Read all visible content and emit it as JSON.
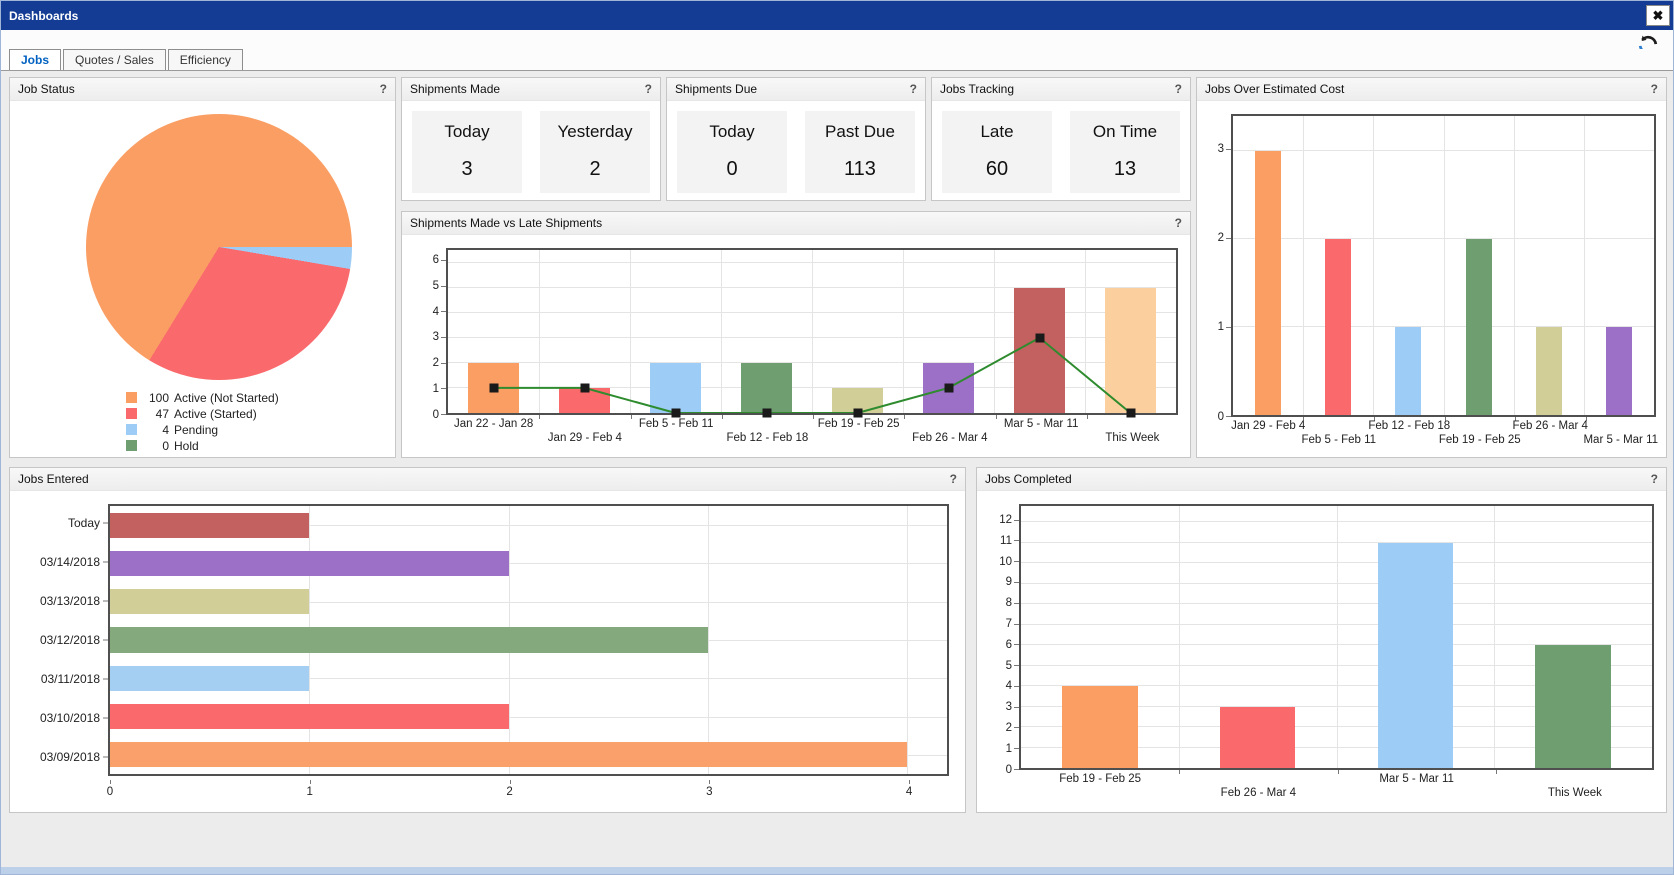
{
  "window": {
    "title": "Dashboards",
    "close_glyph": "✖"
  },
  "tabs": [
    {
      "label": "Jobs",
      "active": true
    },
    {
      "label": "Quotes / Sales",
      "active": false
    },
    {
      "label": "Efficiency",
      "active": false
    }
  ],
  "help_glyph": "?",
  "stat_panels": [
    {
      "title": "Shipments Made",
      "stats": [
        {
          "label": "Today",
          "value": "3"
        },
        {
          "label": "Yesterday",
          "value": "2"
        }
      ]
    },
    {
      "title": "Shipments Due",
      "stats": [
        {
          "label": "Today",
          "value": "0"
        },
        {
          "label": "Past Due",
          "value": "113"
        }
      ]
    },
    {
      "title": "Jobs Tracking",
      "stats": [
        {
          "label": "Late",
          "value": "60"
        },
        {
          "label": "On Time",
          "value": "13"
        }
      ]
    }
  ],
  "colors": {
    "titlebar_blue": "#143C94",
    "active_tab_text": "#0061C1",
    "orange": "#FA9E64",
    "red": "#FA696C",
    "blue": "#9DCDF6",
    "green": "#6F9F71",
    "tan": "#D2CE97",
    "purple": "#9C70C6",
    "maroon": "#C2615F",
    "peach": "#FCD09E",
    "line_green": "#2E8B2E"
  },
  "chart_data": [
    {
      "type": "pie",
      "title": "Job Status",
      "labels": [
        "Active (Not Started)",
        "Active (Started)",
        "Pending",
        "Hold"
      ],
      "values": [
        100,
        47,
        4,
        0
      ],
      "colors": [
        "#FA9E64",
        "#FA696C",
        "#9DCDF6",
        "#6F9F71"
      ],
      "legend": [
        {
          "value": "100",
          "label": "Active (Not Started)"
        },
        {
          "value": "47",
          "label": "Active (Started)"
        },
        {
          "value": "4",
          "label": "Pending"
        },
        {
          "value": "0",
          "label": "Hold"
        }
      ],
      "legend_position": "bottom-left"
    },
    {
      "type": "bar",
      "title": "Jobs Over Estimated Cost",
      "categories": [
        "Jan 29 - Feb 4",
        "Feb 5 - Feb 11",
        "Feb 12 - Feb 18",
        "Feb 19 - Feb 25",
        "Feb 26 - Mar 4",
        "Mar 5 - Mar 11"
      ],
      "values": [
        3,
        2,
        1,
        2,
        1,
        1
      ],
      "colors": [
        "#FA9E64",
        "#FA696C",
        "#9DCDF6",
        "#6F9F71",
        "#D2CE97",
        "#9C70C6"
      ],
      "ylim": [
        0,
        3.4
      ],
      "yticks": [
        0,
        1,
        2,
        3
      ],
      "grid": true
    },
    {
      "type": "bar+line",
      "title": "Shipments Made vs Late Shipments",
      "categories": [
        "Jan 22 - Jan 28",
        "Jan 29 - Feb 4",
        "Feb 5 - Feb 11",
        "Feb 12 - Feb 18",
        "Feb 19 - Feb 25",
        "Feb 26 - Mar 4",
        "Mar 5 - Mar 11",
        "This Week"
      ],
      "series": [
        {
          "name": "Shipments Made",
          "type": "bar",
          "values": [
            2,
            1,
            2,
            2,
            1,
            2,
            5,
            5
          ],
          "colors": [
            "#FA9E64",
            "#FA696C",
            "#9DCDF6",
            "#6F9F71",
            "#D2CE97",
            "#9C70C6",
            "#C2615F",
            "#FCD09E"
          ]
        },
        {
          "name": "Late Shipments",
          "type": "line",
          "values": [
            1,
            1,
            0,
            0,
            0,
            1,
            3,
            0
          ],
          "color": "#2E8B2E",
          "marker": "black-square"
        }
      ],
      "ylim": [
        0,
        6.5
      ],
      "yticks": [
        0,
        1,
        2,
        3,
        4,
        5,
        6
      ],
      "grid": true
    },
    {
      "type": "horizontal-bar",
      "title": "Jobs Entered",
      "categories": [
        "Today",
        "03/14/2018",
        "03/13/2018",
        "03/12/2018",
        "03/11/2018",
        "03/10/2018",
        "03/09/2018"
      ],
      "values": [
        1,
        2,
        1,
        3,
        1,
        2,
        4
      ],
      "colors": [
        "#C2615F",
        "#9C70C6",
        "#D2CE97",
        "#84A97D",
        "#A5CEF3",
        "#FA696C",
        "#FAA06B"
      ],
      "xlim": [
        0,
        4.2
      ],
      "xticks": [
        0,
        1,
        2,
        3,
        4
      ],
      "grid": true
    },
    {
      "type": "bar",
      "title": "Jobs Completed",
      "categories": [
        "Feb 19 - Feb 25",
        "Feb 26 - Mar 4",
        "Mar 5 - Mar 11",
        "This Week"
      ],
      "values": [
        4,
        3,
        11,
        6
      ],
      "colors": [
        "#FA9E64",
        "#FA696C",
        "#9DCDF6",
        "#6F9F71"
      ],
      "ylim": [
        0,
        12.8
      ],
      "yticks": [
        0,
        1,
        2,
        3,
        4,
        5,
        6,
        7,
        8,
        9,
        10,
        11,
        12
      ],
      "grid": true
    }
  ]
}
